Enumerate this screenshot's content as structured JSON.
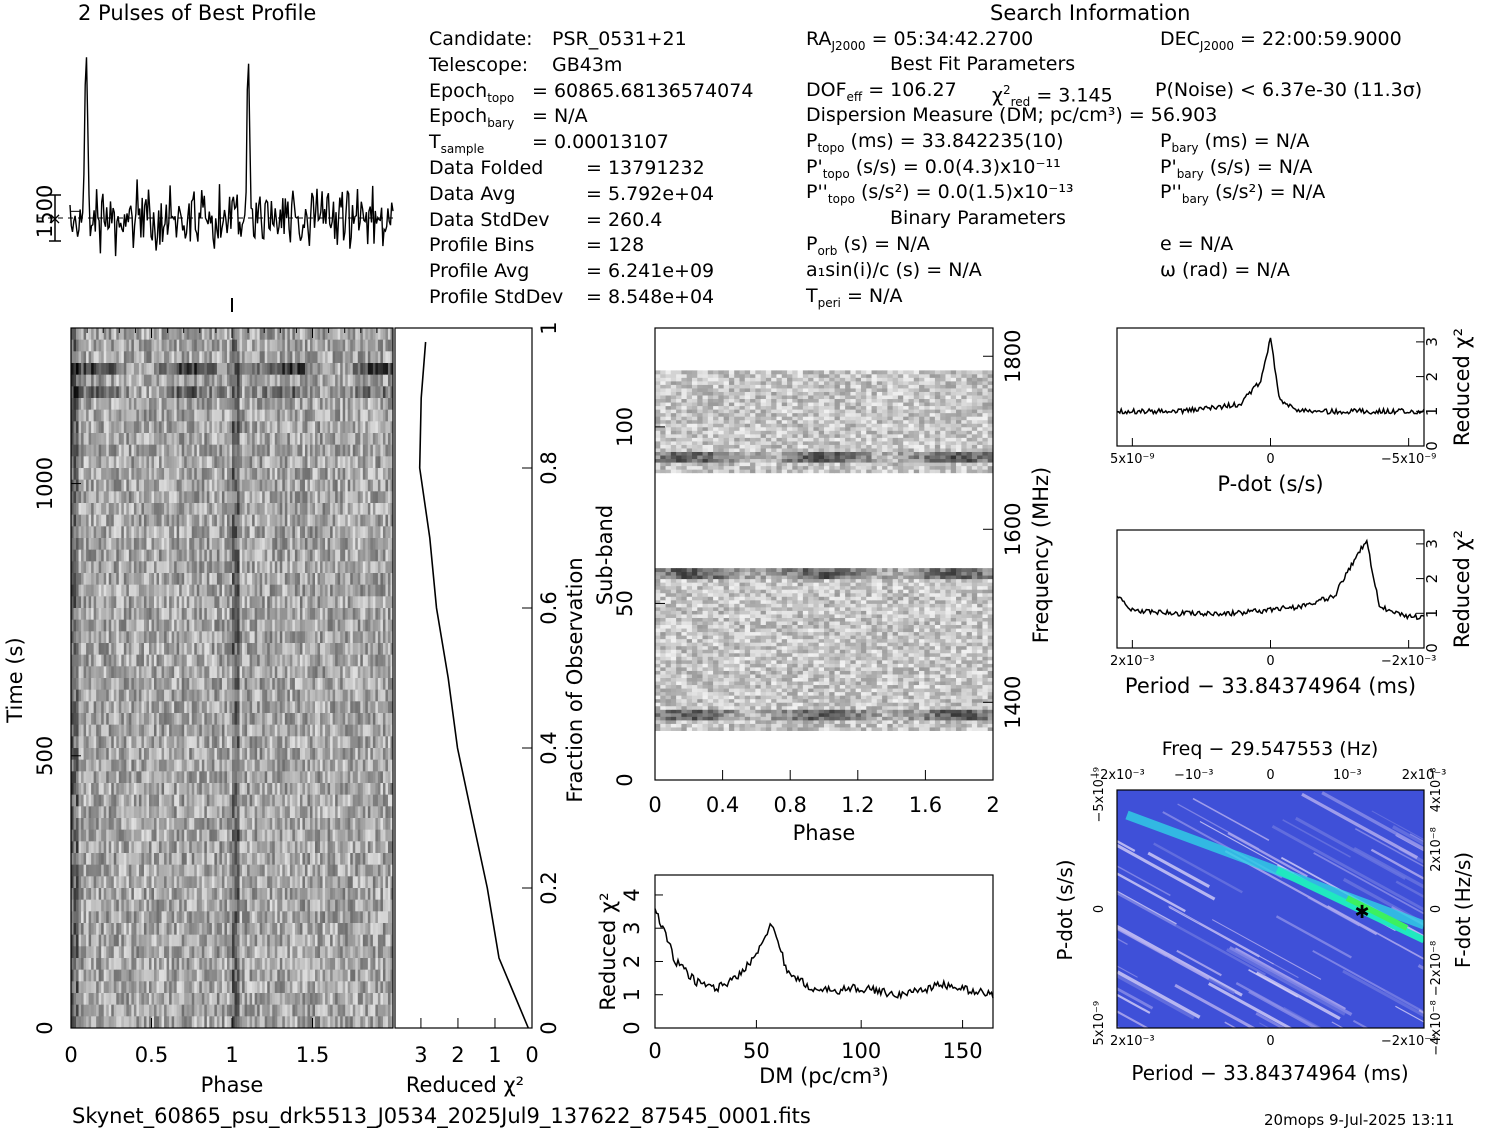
{
  "header": {
    "profile_title": "2 Pulses of Best Profile",
    "search_title": "Search Information",
    "best_fit_title": "Best Fit Parameters",
    "binary_title": "Binary Parameters"
  },
  "info_left": [
    {
      "k": "Candidate:",
      "v": "PSR_0531+21"
    },
    {
      "k": "Telescope:",
      "v": "GB43m"
    },
    {
      "k": "Epoch_topo",
      "v": "= 60865.68136574074"
    },
    {
      "k": "Epoch_bary",
      "v": "= N/A"
    },
    {
      "k": "T_sample",
      "v": "=   0.00013107"
    },
    {
      "k": "Data Folded",
      "v": "=   13791232"
    },
    {
      "k": "Data Avg",
      "v": "=   5.792e+04"
    },
    {
      "k": "Data StdDev",
      "v": "=   260.4"
    },
    {
      "k": "Profile Bins",
      "v": "=   128"
    },
    {
      "k": "Profile Avg",
      "v": "=   6.241e+09"
    },
    {
      "k": "Profile StdDev",
      "v": "=   8.548e+04"
    }
  ],
  "info_mid": {
    "ra": "= 05:34:42.2700",
    "dec": "= 22:00:59.9000",
    "dof": "= 106.27",
    "chi2": "= 3.145",
    "pnoise": "P(Noise) < 6.37e-30   (11.3σ)",
    "dm": "Dispersion Measure (DM; pc/cm³) = 56.903",
    "ptopo": "(ms) =  33.842235(10)",
    "pbary": "(ms) = N/A",
    "pdtopo": "(s/s) = 0.0(4.3)x10⁻¹¹",
    "pdbary": "(s/s) = N/A",
    "pddtopo": "(s/s²) = 0.0(1.5)x10⁻¹³",
    "pddbary": "(s/s²) = N/A",
    "porb": "(s) = N/A",
    "a1": "a₁sin(i)/c (s) = N/A",
    "tperi": "= N/A",
    "e": "e = N/A",
    "omega": "ω (rad) = N/A"
  },
  "footer": {
    "filename": "Skynet_60865_psu_drk5513_J0534_2025Jul9_137622_87545_0001.fits",
    "stamp": "20mops   9-Jul-2025 13:11"
  },
  "chart_data": [
    {
      "id": "profile",
      "type": "line",
      "title": "2 Pulses of Best Profile",
      "x_range": [
        0,
        2
      ],
      "peaks_phase": [
        0.1,
        1.1
      ],
      "noise_level": "flat baseline"
    },
    {
      "id": "time_phase",
      "type": "heatmap",
      "xlabel": "Phase",
      "ylabel": "Time (s)",
      "xlim": [
        0,
        2
      ],
      "ylim": [
        0,
        1800
      ],
      "xticks": [
        "0",
        "0.5",
        "1",
        "1.5"
      ],
      "yticks": [
        "0",
        "500",
        "1000",
        "1500"
      ]
    },
    {
      "id": "time_chi2",
      "type": "line",
      "xlabel": "Reduced χ²",
      "ylabel": "Fraction of Observation",
      "xticks": [
        "3",
        "2",
        "1",
        "0"
      ],
      "yticks": [
        "0",
        "0.2",
        "0.4",
        "0.6",
        "0.8",
        "1"
      ],
      "x": [
        0.1,
        0.9,
        1.2,
        1.6,
        2.0,
        2.3,
        2.6,
        2.8,
        3.0,
        3.0,
        2.9
      ],
      "y": [
        0.0,
        0.1,
        0.2,
        0.3,
        0.4,
        0.5,
        0.6,
        0.7,
        0.8,
        0.9,
        0.98
      ]
    },
    {
      "id": "subband",
      "type": "heatmap",
      "xlabel": "Phase",
      "ylabel": "Sub-band",
      "y2label": "Frequency (MHz)",
      "xticks": [
        "0",
        "0.4",
        "0.8",
        "1.2",
        "1.6",
        "2"
      ],
      "yticks": [
        "0",
        "50",
        "100"
      ],
      "y2ticks": [
        "1400",
        "1600",
        "1800"
      ],
      "bright_subbands": [
        18,
        58,
        91
      ]
    },
    {
      "id": "dm_curve",
      "type": "line",
      "xlabel": "DM (pc/cm³)",
      "ylabel": "Reduced χ²",
      "xticks": [
        "0",
        "50",
        "100",
        "150"
      ],
      "yticks": [
        "0",
        "1",
        "2",
        "3",
        "4"
      ],
      "x": [
        0,
        10,
        20,
        30,
        40,
        50,
        56.9,
        65,
        80,
        100,
        120,
        140,
        165
      ],
      "y": [
        3.6,
        2.0,
        1.4,
        1.2,
        1.5,
        2.3,
        3.2,
        1.6,
        1.1,
        1.2,
        1.0,
        1.3,
        1.0
      ]
    },
    {
      "id": "pdot_curve",
      "type": "line",
      "xlabel": "P-dot (s/s)",
      "ylabel": "Reduced χ²",
      "xticks": [
        "5x10⁻⁹",
        "0",
        "−5x10⁻⁹"
      ],
      "yticks": [
        "0",
        "1",
        "2",
        "3"
      ],
      "x": [
        5,
        3,
        1,
        0.3,
        0,
        -0.3,
        -1,
        -3,
        -5
      ],
      "y": [
        1.0,
        1.0,
        1.2,
        1.9,
        3.1,
        1.3,
        1.0,
        1.0,
        1.0
      ]
    },
    {
      "id": "period_curve",
      "type": "line",
      "xlabel": "Period − 33.84374964 (ms)",
      "ylabel": "Reduced χ²",
      "xticks": [
        "2x10⁻³",
        "0",
        "−2x10⁻³"
      ],
      "yticks": [
        "0",
        "1",
        "2",
        "3"
      ],
      "x": [
        2.4,
        2.2,
        1.5,
        0.5,
        0,
        -0.5,
        -1.0,
        -1.3,
        -1.5,
        -1.7,
        -2.1,
        -2.4
      ],
      "y": [
        1.5,
        1.1,
        1.0,
        1.0,
        1.1,
        1.2,
        1.5,
        2.5,
        3.1,
        1.2,
        0.9,
        0.9
      ]
    },
    {
      "id": "p_pdot_plane",
      "type": "heatmap",
      "title": "Freq − 29.547553 (Hz)",
      "xlabel": "Period − 33.84374964 (ms)",
      "ylabel": "P-dot (s/s)",
      "y2label": "F-dot (Hz/s)",
      "xticks": [
        "2x10⁻³",
        "0",
        "−2x10⁻³"
      ],
      "x2ticks": [
        "−2x10⁻³",
        "−10⁻³",
        "0",
        "10⁻³",
        "2x10⁻³"
      ],
      "yticks": [
        "5x10⁻⁹",
        "0",
        "−5x10⁻⁹"
      ],
      "y2ticks": [
        "−4x10⁻⁸",
        "−2x10⁻⁸",
        "0",
        "2x10⁻⁸",
        "4x10⁻⁸"
      ],
      "best": {
        "period_offset": -1.5,
        "pdot": 0
      }
    }
  ]
}
